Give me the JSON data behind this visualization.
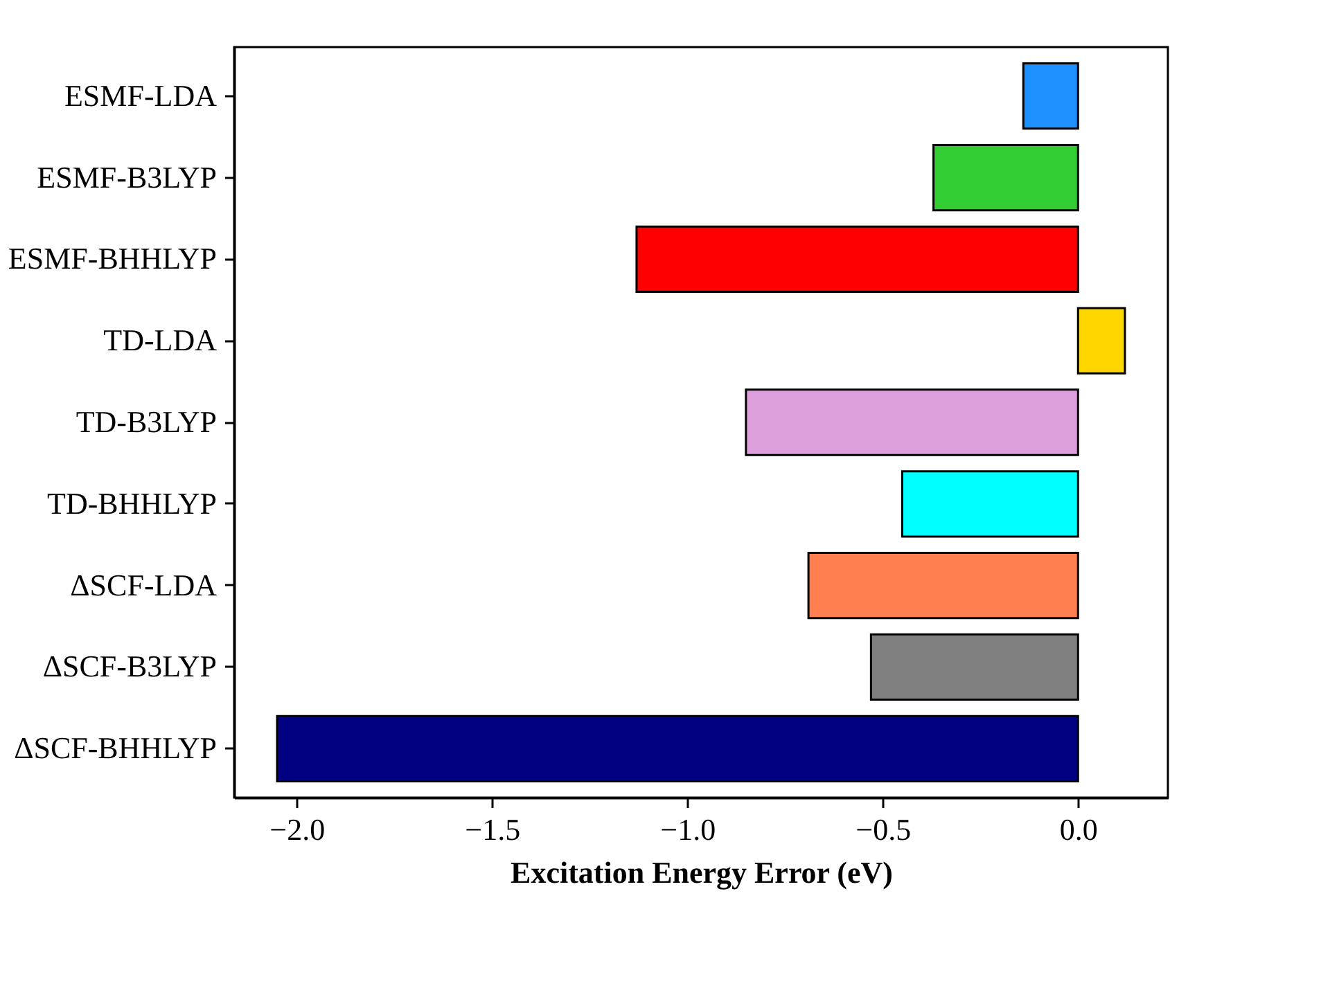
{
  "chart_data": {
    "type": "bar",
    "orientation": "horizontal",
    "xlabel": "Excitation Energy Error (eV)",
    "categories": [
      "ESMF-LDA",
      "ESMF-B3LYP",
      "ESMF-BHHLYP",
      "TD-LDA",
      "TD-B3LYP",
      "TD-BHHLYP",
      "ΔSCF-LDA",
      "ΔSCF-B3LYP",
      "ΔSCF-BHHLYP"
    ],
    "values": [
      -0.14,
      -0.37,
      -1.13,
      0.12,
      -0.85,
      -0.45,
      -0.69,
      -0.53,
      -2.05
    ],
    "colors": [
      "#1e90ff",
      "#32cd32",
      "#ff0000",
      "#ffd700",
      "#dda0dd",
      "#00ffff",
      "#ff7f50",
      "#808080",
      "#000080"
    ],
    "xlim": [
      -2.16,
      0.23
    ],
    "xticks": [
      {
        "value": -2.0,
        "label": "−2.0"
      },
      {
        "value": -1.5,
        "label": "−1.5"
      },
      {
        "value": -1.0,
        "label": "−1.0"
      },
      {
        "value": -0.5,
        "label": "−0.5"
      },
      {
        "value": 0.0,
        "label": "0.0"
      }
    ],
    "grid": false,
    "legend": false
  }
}
